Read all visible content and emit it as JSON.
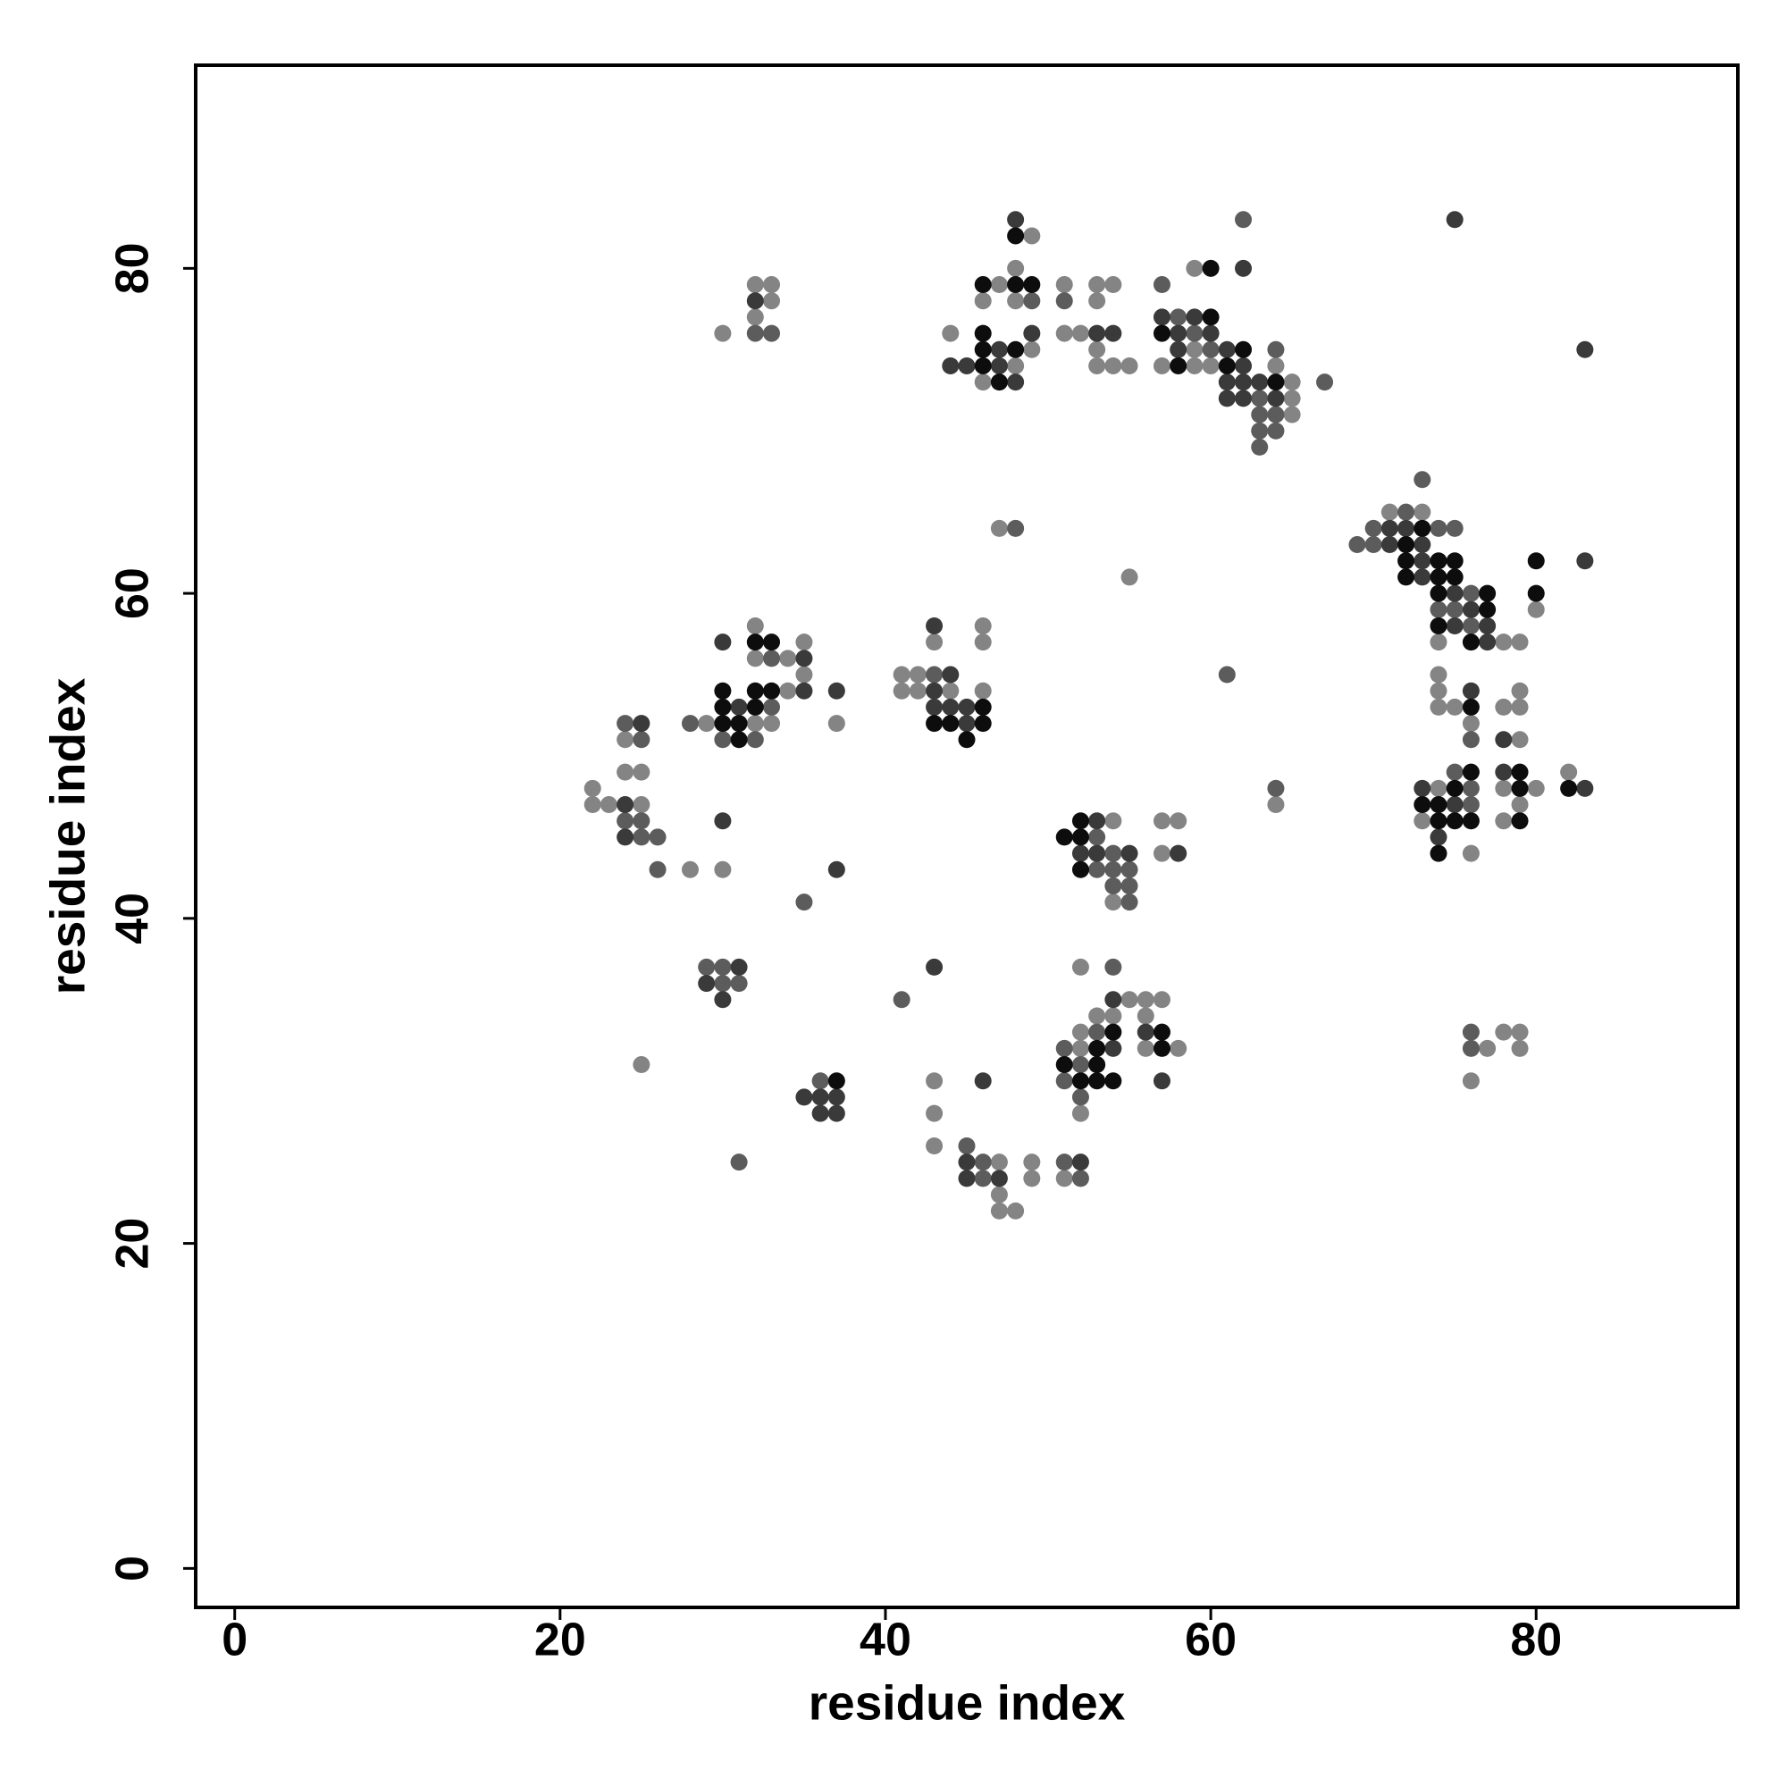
{
  "chart_data": {
    "type": "scatter",
    "xlabel": "residue index",
    "ylabel": "residue index",
    "xlim": [
      -2.4,
      92.4
    ],
    "ylim": [
      -2.4,
      92.5
    ],
    "xticks": [
      0,
      20,
      40,
      60,
      80
    ],
    "yticks": [
      0,
      20,
      40,
      60,
      80
    ],
    "series": [
      {
        "color": "#848484",
        "x": [
          49,
          47,
          48,
          46,
          48,
          49,
          44,
          48,
          46,
          51,
          53,
          54,
          53,
          51,
          52,
          53,
          53,
          54,
          55,
          32,
          33,
          33,
          32,
          30,
          59,
          59,
          57,
          59,
          60,
          65,
          65,
          65,
          64,
          47,
          55,
          71,
          73,
          74,
          78,
          79,
          80,
          32,
          35,
          32,
          34,
          35,
          34,
          29,
          32,
          33,
          37,
          24,
          24,
          25,
          22,
          22,
          23,
          25,
          28,
          30,
          46,
          43,
          46,
          41,
          42,
          41,
          42,
          44,
          46,
          54,
          54,
          57,
          58,
          57,
          64,
          74,
          74,
          79,
          74,
          75,
          78,
          79,
          76,
          79,
          82,
          74,
          78,
          80,
          79,
          73,
          78,
          76,
          25,
          52,
          55,
          56,
          57,
          53,
          54,
          56,
          52,
          52,
          56,
          58,
          52,
          78,
          79,
          77,
          79,
          76,
          43,
          43,
          43,
          47,
          49,
          49,
          51,
          47,
          47,
          48
        ],
        "y": [
          82,
          79,
          80,
          78,
          78,
          75,
          76,
          74,
          73,
          79,
          79,
          79,
          78,
          76,
          76,
          75,
          74,
          74,
          74,
          79,
          79,
          78,
          77,
          76,
          80,
          75,
          74,
          74,
          74,
          73,
          72,
          71,
          74,
          64,
          61,
          65,
          65,
          57,
          57,
          57,
          59,
          58,
          57,
          56,
          56,
          55,
          54,
          52,
          52,
          52,
          52,
          51,
          49,
          49,
          48,
          47,
          47,
          47,
          43,
          43,
          58,
          57,
          57,
          55,
          55,
          54,
          54,
          54,
          54,
          46,
          41,
          46,
          46,
          44,
          47,
          55,
          54,
          54,
          53,
          53,
          53,
          53,
          52,
          51,
          49,
          48,
          48,
          48,
          47,
          46,
          46,
          44,
          31,
          37,
          35,
          35,
          35,
          34,
          34,
          34,
          33,
          32,
          32,
          32,
          28,
          33,
          33,
          32,
          32,
          30,
          30,
          28,
          26,
          25,
          25,
          24,
          24,
          23,
          22,
          22
        ]
      },
      {
        "color": "#5c5c5c",
        "x": [
          49,
          51,
          32,
          33,
          57,
          58,
          59,
          60,
          63,
          63,
          64,
          64,
          63,
          64,
          63,
          62,
          67,
          48,
          73,
          72,
          70,
          74,
          75,
          69,
          70,
          76,
          75,
          76,
          74,
          61,
          33,
          33,
          28,
          30,
          32,
          24,
          25,
          24,
          25,
          25,
          26,
          26,
          35,
          43,
          53,
          54,
          53,
          54,
          55,
          54,
          55,
          55,
          64,
          76,
          75,
          76,
          76,
          29,
          30,
          30,
          31,
          31,
          41,
          54,
          53,
          51,
          52,
          51,
          52,
          76,
          76,
          36,
          45,
          46,
          51,
          46,
          52
        ],
        "y": [
          78,
          78,
          76,
          76,
          79,
          77,
          76,
          75,
          72,
          71,
          71,
          75,
          70,
          70,
          69,
          83,
          73,
          64,
          67,
          65,
          64,
          64,
          64,
          63,
          63,
          60,
          59,
          58,
          59,
          55,
          56,
          53,
          52,
          51,
          51,
          52,
          51,
          46,
          46,
          45,
          45,
          43,
          41,
          55,
          45,
          44,
          43,
          43,
          43,
          42,
          42,
          41,
          48,
          51,
          49,
          48,
          47,
          37,
          37,
          36,
          36,
          25,
          35,
          37,
          33,
          32,
          31,
          30,
          29,
          33,
          32,
          30,
          26,
          25,
          25,
          24,
          24
        ]
      },
      {
        "color": "#3a3a3a",
        "x": [
          48,
          49,
          47,
          44,
          45,
          47,
          48,
          53,
          54,
          32,
          62,
          57,
          59,
          58,
          60,
          58,
          61,
          62,
          61,
          62,
          63,
          61,
          62,
          64,
          75,
          83,
          71,
          72,
          71,
          73,
          73,
          73,
          75,
          76,
          75,
          77,
          77,
          83,
          30,
          35,
          35,
          37,
          31,
          25,
          24,
          24,
          30,
          37,
          43,
          44,
          43,
          43,
          44,
          45,
          45,
          53,
          52,
          53,
          55,
          58,
          76,
          78,
          78,
          73,
          83,
          75,
          74,
          31,
          29,
          30,
          43,
          54,
          56,
          54,
          57,
          35,
          36,
          37,
          36,
          37,
          46,
          45,
          52,
          45,
          47
        ],
        "y": [
          83,
          76,
          75,
          74,
          74,
          74,
          73,
          76,
          76,
          78,
          80,
          77,
          77,
          76,
          76,
          75,
          75,
          74,
          73,
          73,
          73,
          72,
          72,
          72,
          83,
          75,
          64,
          64,
          63,
          63,
          62,
          61,
          60,
          59,
          58,
          58,
          57,
          62,
          57,
          56,
          54,
          54,
          53,
          52,
          47,
          45,
          46,
          43,
          58,
          55,
          54,
          53,
          53,
          53,
          52,
          46,
          44,
          44,
          44,
          44,
          54,
          51,
          49,
          48,
          48,
          47,
          45,
          37,
          36,
          35,
          37,
          35,
          33,
          32,
          30,
          29,
          29,
          29,
          28,
          28,
          30,
          25,
          25,
          24,
          24
        ]
      },
      {
        "color": "#0d0d0d",
        "x": [
          48,
          46,
          48,
          49,
          46,
          46,
          48,
          46,
          47,
          60,
          57,
          60,
          62,
          58,
          61,
          64,
          73,
          72,
          72,
          74,
          75,
          72,
          74,
          75,
          74,
          77,
          77,
          74,
          76,
          80,
          80,
          32,
          33,
          30,
          32,
          33,
          30,
          32,
          30,
          31,
          31,
          46,
          43,
          44,
          46,
          45,
          51,
          52,
          52,
          52,
          76,
          76,
          79,
          75,
          79,
          82,
          73,
          74,
          74,
          75,
          76,
          79,
          74,
          54,
          57,
          53,
          57,
          51,
          53,
          52,
          53,
          54,
          37
        ],
        "y": [
          82,
          79,
          79,
          79,
          76,
          75,
          75,
          74,
          73,
          80,
          76,
          77,
          75,
          74,
          74,
          73,
          64,
          63,
          62,
          62,
          62,
          61,
          61,
          61,
          60,
          60,
          59,
          58,
          57,
          62,
          60,
          57,
          57,
          54,
          54,
          54,
          53,
          53,
          52,
          52,
          51,
          53,
          52,
          52,
          52,
          51,
          45,
          46,
          45,
          43,
          53,
          49,
          49,
          48,
          48,
          48,
          47,
          47,
          46,
          46,
          46,
          46,
          44,
          33,
          33,
          32,
          32,
          31,
          31,
          30,
          30,
          30,
          30
        ]
      }
    ]
  }
}
